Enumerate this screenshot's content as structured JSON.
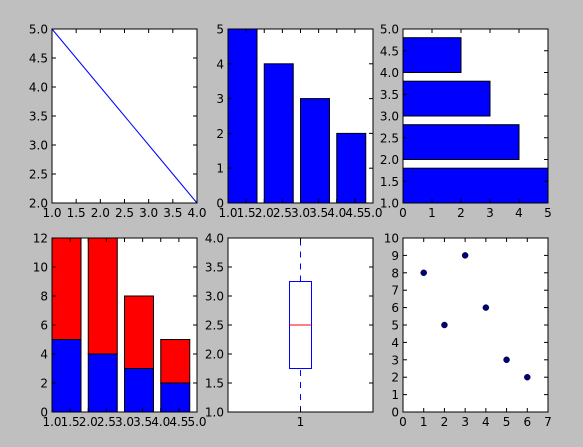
{
  "chart_data": [
    {
      "type": "line",
      "xlim": [
        1,
        4
      ],
      "ylim": [
        2,
        5
      ],
      "xticks": [
        {
          "value": 1,
          "label": "1.0"
        },
        1.5,
        {
          "value": 2,
          "label": "2.0"
        },
        2.5,
        {
          "value": 3,
          "label": "3.0"
        },
        3.5,
        {
          "value": 4,
          "label": "4.0"
        }
      ],
      "yticks": [
        {
          "value": 2,
          "label": "2.0"
        },
        2.5,
        {
          "value": 3,
          "label": "3.0"
        },
        3.5,
        {
          "value": 4,
          "label": "4.0"
        },
        4.5,
        {
          "value": 5,
          "label": "5.0"
        }
      ],
      "series": [
        {
          "color": "#0000ff",
          "x": [
            1,
            2,
            3,
            4
          ],
          "values": [
            5,
            4,
            3,
            2
          ]
        }
      ]
    },
    {
      "type": "bar",
      "xlim": [
        1,
        5
      ],
      "ylim": [
        0,
        5
      ],
      "xticks": [
        {
          "value": 1,
          "label": "1.0"
        },
        1.5,
        {
          "value": 2,
          "label": "2.0"
        },
        2.5,
        {
          "value": 3,
          "label": "3.0"
        },
        3.5,
        {
          "value": 4,
          "label": "4.0"
        },
        4.5,
        {
          "value": 5,
          "label": "5.0"
        }
      ],
      "yticks": [
        0,
        1,
        2,
        3,
        4,
        5
      ],
      "x": [
        1,
        2,
        3,
        4
      ],
      "series": [
        {
          "color": "#0000ff",
          "values": [
            5,
            4,
            3,
            2
          ]
        }
      ]
    },
    {
      "type": "barh",
      "xlim": [
        0,
        5
      ],
      "ylim": [
        1,
        5
      ],
      "xticks": [
        0,
        1,
        2,
        3,
        4,
        5
      ],
      "yticks": [
        {
          "value": 1,
          "label": "1.0"
        },
        1.5,
        {
          "value": 2,
          "label": "2.0"
        },
        2.5,
        {
          "value": 3,
          "label": "3.0"
        },
        3.5,
        {
          "value": 4,
          "label": "4.0"
        },
        4.5,
        {
          "value": 5,
          "label": "5.0"
        }
      ],
      "x": [
        1,
        2,
        3,
        4
      ],
      "series": [
        {
          "color": "#0000ff",
          "values": [
            5,
            4,
            3,
            2
          ]
        }
      ]
    },
    {
      "type": "bar",
      "xlim": [
        1,
        5
      ],
      "ylim": [
        0,
        12
      ],
      "xticks": [
        {
          "value": 1,
          "label": "1.0"
        },
        1.5,
        {
          "value": 2,
          "label": "2.0"
        },
        2.5,
        {
          "value": 3,
          "label": "3.0"
        },
        3.5,
        {
          "value": 4,
          "label": "4.0"
        },
        4.5,
        {
          "value": 5,
          "label": "5.0"
        }
      ],
      "yticks": [
        0,
        2,
        4,
        6,
        8,
        10,
        12
      ],
      "x": [
        1,
        2,
        3,
        4
      ],
      "series": [
        {
          "color": "#0000ff",
          "values": [
            5,
            4,
            3,
            2
          ]
        },
        {
          "color": "#ff0000",
          "values": [
            7,
            8,
            5,
            3
          ]
        }
      ]
    },
    {
      "type": "box",
      "xlim": [
        0.5,
        1.5
      ],
      "ylim": [
        1,
        4
      ],
      "xticks": [
        1
      ],
      "yticks": [
        {
          "value": 1,
          "label": "1.0"
        },
        1.5,
        {
          "value": 2,
          "label": "2.0"
        },
        2.5,
        {
          "value": 3,
          "label": "3.0"
        },
        3.5,
        {
          "value": 4,
          "label": "4.0"
        }
      ],
      "boxes": [
        {
          "x": 1,
          "whislo": 1,
          "q1": 1.75,
          "med": 2.5,
          "q3": 3.25,
          "whishi": 4
        }
      ],
      "color": "#0000ff",
      "median_color": "#ff0000"
    },
    {
      "type": "scatter",
      "xlim": [
        0,
        7
      ],
      "ylim": [
        0,
        10
      ],
      "xticks": [
        0,
        1,
        2,
        3,
        4,
        5,
        6,
        7
      ],
      "yticks": [
        0,
        1,
        2,
        3,
        4,
        5,
        6,
        7,
        8,
        9,
        10
      ],
      "series": [
        {
          "color": "#000080",
          "x": [
            1,
            2,
            3,
            4,
            5,
            6
          ],
          "values": [
            8,
            5,
            9,
            6,
            3,
            2
          ]
        }
      ]
    }
  ]
}
